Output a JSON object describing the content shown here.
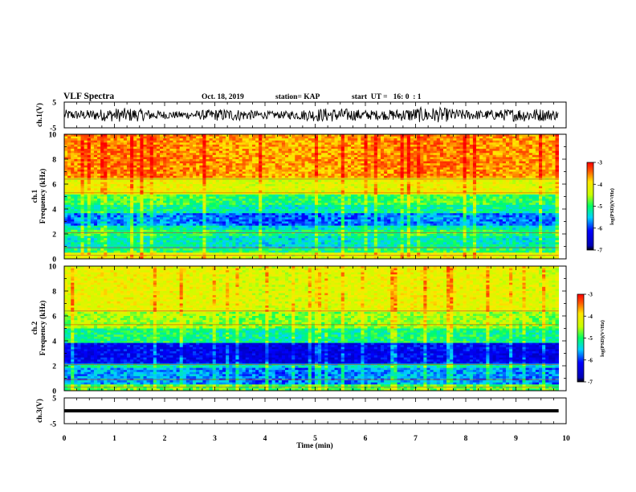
{
  "header": {
    "title": "VLF Spectra",
    "date": "Oct. 18, 2019",
    "station": "station= KAP",
    "start": "start  UT =   16: 0  : 1"
  },
  "chart_data": [
    {
      "id": "ch1-waveform",
      "type": "line",
      "ylabel": "ch.1(V)",
      "ylim": [
        -5,
        5
      ],
      "yticks": [
        5,
        -5
      ],
      "xlim": [
        0,
        10
      ],
      "data_until": 9.85,
      "noise_amplitude": 2.5
    },
    {
      "id": "ch1-spectrogram",
      "type": "heatmap",
      "ylabel": "ch.1\nFrequency (kHz)",
      "ylim": [
        0,
        10
      ],
      "yticks": [
        0,
        2,
        4,
        6,
        8,
        10
      ],
      "xlim": [
        0,
        10
      ],
      "data_until": 9.85,
      "colorbar": {
        "label": "log(PSD)(V²/Hz)",
        "range": [
          -7,
          -3
        ],
        "ticks": [
          -3,
          -4,
          -5,
          -6,
          -7
        ]
      },
      "bands": [
        {
          "from": 0.0,
          "to": 0.5,
          "value": -4.2
        },
        {
          "from": 0.5,
          "to": 0.8,
          "value": -5.0
        },
        {
          "from": 0.8,
          "to": 1.8,
          "value": -5.3
        },
        {
          "from": 1.8,
          "to": 2.3,
          "value": -5.0
        },
        {
          "from": 2.3,
          "to": 2.6,
          "value": -5.3
        },
        {
          "from": 2.6,
          "to": 3.6,
          "value": -5.8
        },
        {
          "from": 3.6,
          "to": 4.3,
          "value": -5.2
        },
        {
          "from": 4.3,
          "to": 5.2,
          "value": -4.9
        },
        {
          "from": 5.2,
          "to": 6.5,
          "value": -4.2
        },
        {
          "from": 6.5,
          "to": 10.0,
          "value": -3.6
        }
      ]
    },
    {
      "id": "ch2-spectrogram",
      "type": "heatmap",
      "ylabel": "ch.2\nFrequency (kHz)",
      "ylim": [
        0,
        10
      ],
      "yticks": [
        0,
        2,
        4,
        6,
        8,
        10
      ],
      "xlim": [
        0,
        10
      ],
      "data_until": 9.85,
      "colorbar": {
        "label": "log(PSD)(V²/Hz)",
        "range": [
          -7,
          -3
        ],
        "ticks": [
          -3,
          -4,
          -5,
          -6,
          -7
        ]
      },
      "bands": [
        {
          "from": 0.0,
          "to": 0.5,
          "value": -4.8
        },
        {
          "from": 0.5,
          "to": 1.8,
          "value": -5.7
        },
        {
          "from": 1.8,
          "to": 2.2,
          "value": -5.3
        },
        {
          "from": 2.2,
          "to": 3.8,
          "value": -6.3
        },
        {
          "from": 3.8,
          "to": 5.0,
          "value": -5.1
        },
        {
          "from": 5.0,
          "to": 6.3,
          "value": -4.6
        },
        {
          "from": 6.3,
          "to": 10.0,
          "value": -4.2
        }
      ]
    },
    {
      "id": "ch3-waveform",
      "type": "line",
      "ylabel": "ch.3(V)",
      "ylim": [
        -5,
        5
      ],
      "yticks": [
        5,
        -5
      ],
      "xlim": [
        0,
        10
      ],
      "data_until": 9.85,
      "level": 0
    }
  ],
  "xaxis": {
    "label": "Time (min)",
    "ticks": [
      0,
      1,
      2,
      3,
      4,
      5,
      6,
      7,
      8,
      9,
      10
    ]
  },
  "colors": {
    "line": "#000000",
    "background": "#ffffff"
  }
}
